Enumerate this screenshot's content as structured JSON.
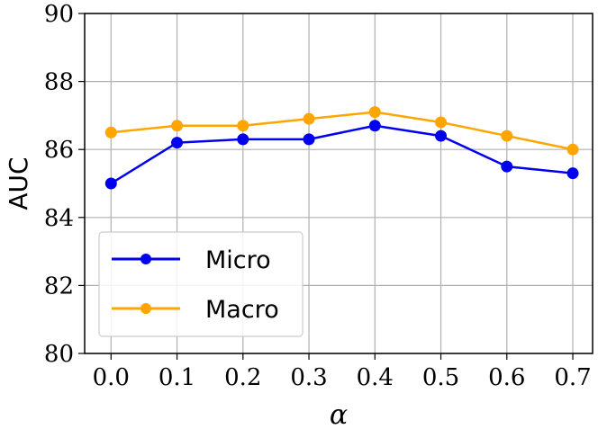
{
  "chart_data": {
    "type": "line",
    "title": "",
    "xlabel": "α",
    "ylabel": "AUC",
    "x": [
      0.0,
      0.1,
      0.2,
      0.3,
      0.4,
      0.5,
      0.6,
      0.7
    ],
    "x_tick_labels": [
      "0.0",
      "0.1",
      "0.2",
      "0.3",
      "0.4",
      "0.5",
      "0.6",
      "0.7"
    ],
    "y_ticks": [
      80,
      82,
      84,
      86,
      88,
      90
    ],
    "y_tick_labels": [
      "80",
      "82",
      "84",
      "86",
      "88",
      "90"
    ],
    "xlim": [
      -0.04,
      0.73
    ],
    "ylim": [
      80,
      90
    ],
    "grid": true,
    "legend_position": "lower-left",
    "series": [
      {
        "name": "Micro",
        "color": "#0000ee",
        "values": [
          85.0,
          86.2,
          86.3,
          86.3,
          86.7,
          86.4,
          85.5,
          85.3
        ]
      },
      {
        "name": "Macro",
        "color": "#ffa500",
        "values": [
          86.5,
          86.7,
          86.7,
          86.9,
          87.1,
          86.8,
          86.4,
          86.0
        ]
      }
    ]
  }
}
